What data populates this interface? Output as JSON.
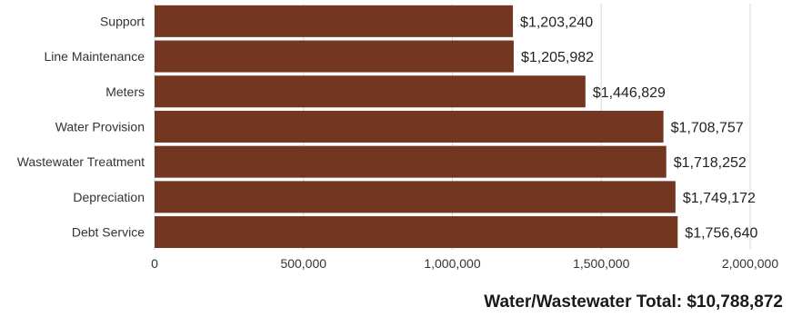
{
  "chart_data": {
    "type": "bar",
    "orientation": "horizontal",
    "categories": [
      "Support",
      "Line Maintenance",
      "Meters",
      "Water Provision",
      "Wastewater Treatment",
      "Depreciation",
      "Debt Service"
    ],
    "values": [
      1203240,
      1205982,
      1446829,
      1708757,
      1718252,
      1749172,
      1756640
    ],
    "value_labels": [
      "$1,203,240",
      "$1,205,982",
      "$1,446,829",
      "$1,708,757",
      "$1,718,252",
      "$1,749,172",
      "$1,756,640"
    ],
    "xlim": [
      0,
      2000000
    ],
    "x_ticks": [
      0,
      500000,
      1000000,
      1500000,
      2000000
    ],
    "x_tick_labels": [
      "0",
      "500,000",
      "1,000,000",
      "1,500,000",
      "2,000,000"
    ],
    "bar_color": "#733721",
    "grid": "vertical",
    "legend": "none"
  },
  "footer": {
    "total_label": "Water/Wastewater Total: $10,788,872"
  }
}
